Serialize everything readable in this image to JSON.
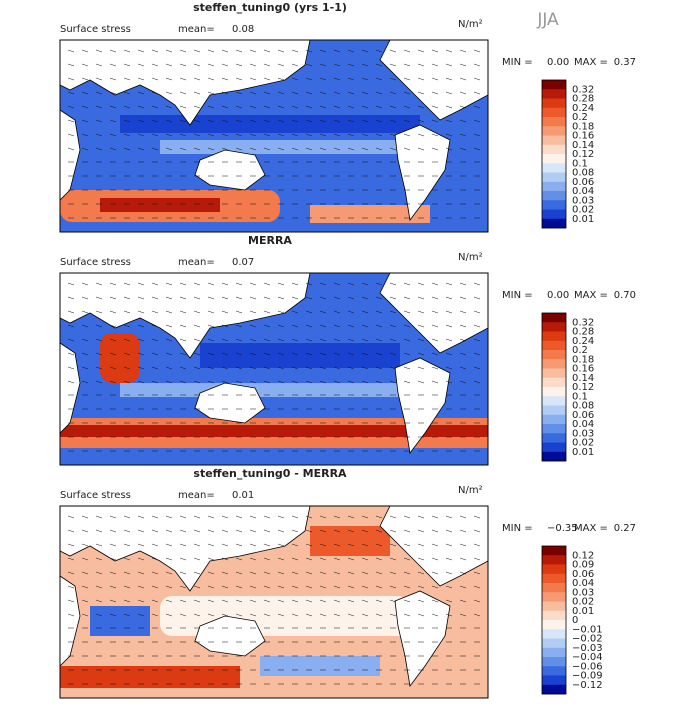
{
  "season": "JJA",
  "colors": [
    "#7a0000",
    "#b81a0a",
    "#dc3a12",
    "#ec5a2c",
    "#f27a4c",
    "#f59a72",
    "#f8bc9e",
    "#fcdcc8",
    "#fdf3ea",
    "#d8e6fa",
    "#b2cdf4",
    "#8aaff0",
    "#6290e8",
    "#3a6ae0",
    "#1a42d0",
    "#000c96"
  ],
  "panels": [
    {
      "title": "steffen_tuning0 (yrs 1-1)",
      "field": "Surface stress",
      "mean_label": "mean=",
      "mean": "0.08",
      "units": "N/m²",
      "min_label": "MIN =",
      "min": "0.00",
      "max_label": "MAX =",
      "max": "0.37",
      "colorbar": [
        "0.32",
        "0.28",
        "0.24",
        "0.2",
        "0.18",
        "0.16",
        "0.14",
        "0.12",
        "0.1",
        "0.08",
        "0.06",
        "0.04",
        "0.03",
        "0.02",
        "0.01"
      ]
    },
    {
      "title": "MERRA",
      "field": "Surface stress",
      "mean_label": "mean=",
      "mean": "0.07",
      "units": "N/m²",
      "min_label": "MIN =",
      "min": "0.00",
      "max_label": "MAX =",
      "max": "0.70",
      "colorbar": [
        "0.32",
        "0.28",
        "0.24",
        "0.2",
        "0.18",
        "0.16",
        "0.14",
        "0.12",
        "0.1",
        "0.08",
        "0.06",
        "0.04",
        "0.03",
        "0.02",
        "0.01"
      ]
    },
    {
      "title": "steffen_tuning0 - MERRA",
      "field": "Surface stress",
      "mean_label": "mean=",
      "mean": "0.01",
      "units": "N/m²",
      "min_label": "MIN =",
      "min": "−0.35",
      "max_label": "MAX =",
      "max": "0.27",
      "colorbar": [
        "0.12",
        "0.09",
        "0.06",
        "0.04",
        "0.03",
        "0.02",
        "0.01",
        "0",
        "−0.01",
        "−0.02",
        "−0.03",
        "−0.04",
        "−0.06",
        "−0.09",
        "−0.12"
      ]
    }
  ]
}
